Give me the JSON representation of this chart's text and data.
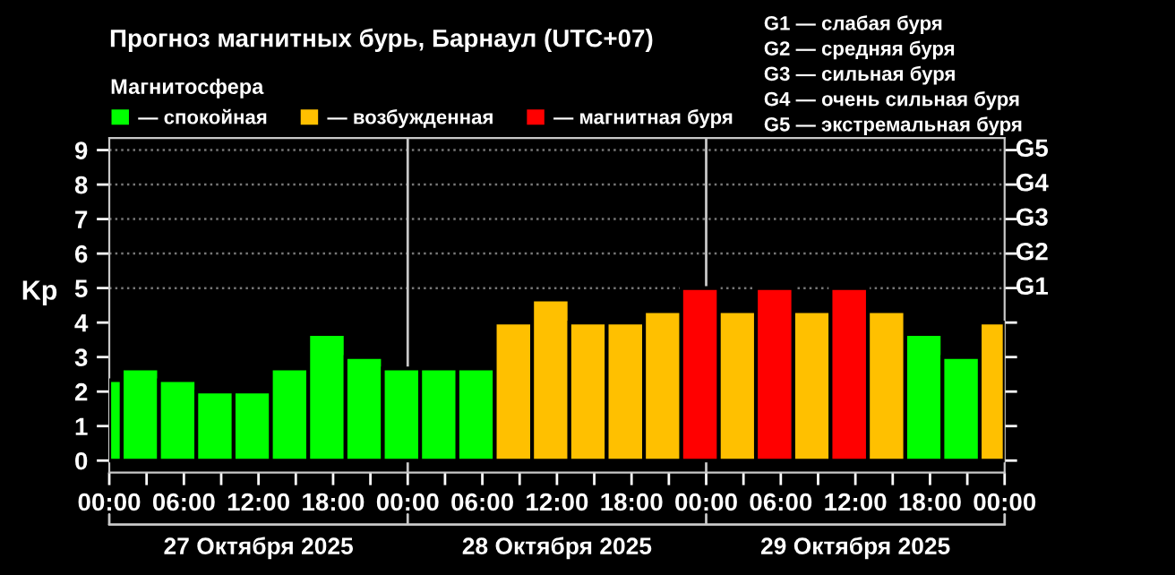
{
  "chart_data": {
    "type": "bar",
    "title": "Прогноз магнитных бурь, Барнаул (UTC+07)",
    "ylabel": "Kp",
    "legend_title": "Магнитосфера",
    "legend": "top left",
    "x": [
      "2025-10-27T00:30",
      "2025-10-27T02:30",
      "2025-10-27T05:30",
      "2025-10-27T08:30",
      "2025-10-27T11:30",
      "2025-10-27T14:30",
      "2025-10-27T17:30",
      "2025-10-27T20:30",
      "2025-10-27T23:30",
      "2025-10-28T02:30",
      "2025-10-28T05:30",
      "2025-10-28T08:30",
      "2025-10-28T11:30",
      "2025-10-28T14:30",
      "2025-10-28T17:30",
      "2025-10-28T20:30",
      "2025-10-28T23:30",
      "2025-10-29T02:30",
      "2025-10-29T05:30",
      "2025-10-29T08:30",
      "2025-10-29T11:30",
      "2025-10-29T14:30",
      "2025-10-29T17:30",
      "2025-10-29T20:30",
      "2025-10-29T23:00"
    ],
    "series": [
      {
        "name": "— спокойная",
        "color": "#00ff00",
        "values": [
          2.33,
          2.67,
          2.33,
          2.0,
          2.0,
          2.67,
          3.67,
          3.0,
          2.67,
          2.67,
          2.67,
          null,
          null,
          null,
          null,
          null,
          null,
          null,
          null,
          null,
          null,
          null,
          3.67,
          3.0,
          null
        ]
      },
      {
        "name": "— возбужденная",
        "color": "#ffc000",
        "values": [
          null,
          null,
          null,
          null,
          null,
          null,
          null,
          null,
          null,
          null,
          null,
          4.0,
          4.67,
          4.0,
          4.0,
          4.33,
          null,
          4.33,
          null,
          4.33,
          null,
          4.33,
          null,
          null,
          4.0
        ]
      },
      {
        "name": "— магнитная буря",
        "color": "#ff0000",
        "values": [
          null,
          null,
          null,
          null,
          null,
          null,
          null,
          null,
          null,
          null,
          null,
          null,
          null,
          null,
          null,
          null,
          5.0,
          null,
          5.0,
          null,
          5.0,
          null,
          null,
          null,
          null
        ]
      }
    ],
    "xlim": [
      "2025-10-27T00:00",
      "2025-10-30T00:00"
    ],
    "xticks": [
      {
        "value": "2025-10-27T00:00",
        "label": "00:00"
      },
      {
        "value": "2025-10-27T03:00",
        "label": null
      },
      {
        "value": "2025-10-27T06:00",
        "label": "06:00"
      },
      {
        "value": "2025-10-27T09:00",
        "label": null
      },
      {
        "value": "2025-10-27T12:00",
        "label": "12:00"
      },
      {
        "value": "2025-10-27T15:00",
        "label": null
      },
      {
        "value": "2025-10-27T18:00",
        "label": "18:00"
      },
      {
        "value": "2025-10-27T21:00",
        "label": null
      },
      {
        "value": "2025-10-28T00:00",
        "label": "00:00"
      },
      {
        "value": "2025-10-28T03:00",
        "label": null
      },
      {
        "value": "2025-10-28T06:00",
        "label": "06:00"
      },
      {
        "value": "2025-10-28T09:00",
        "label": null
      },
      {
        "value": "2025-10-28T12:00",
        "label": "12:00"
      },
      {
        "value": "2025-10-28T15:00",
        "label": null
      },
      {
        "value": "2025-10-28T18:00",
        "label": "18:00"
      },
      {
        "value": "2025-10-28T21:00",
        "label": null
      },
      {
        "value": "2025-10-29T00:00",
        "label": "00:00"
      },
      {
        "value": "2025-10-29T03:00",
        "label": null
      },
      {
        "value": "2025-10-29T06:00",
        "label": "06:00"
      },
      {
        "value": "2025-10-29T09:00",
        "label": null
      },
      {
        "value": "2025-10-29T12:00",
        "label": "12:00"
      },
      {
        "value": "2025-10-29T15:00",
        "label": null
      },
      {
        "value": "2025-10-29T18:00",
        "label": "18:00"
      },
      {
        "value": "2025-10-29T21:00",
        "label": null
      },
      {
        "value": "2025-10-30T00:00",
        "label": "00:00"
      }
    ],
    "ylim": [
      -0.35,
      9.35
    ],
    "yticks": [
      0,
      1,
      2,
      3,
      4,
      5,
      6,
      7,
      8,
      9
    ],
    "ref_lines": [
      {
        "axis": "x",
        "value": "2025-10-28T00:00",
        "label": null,
        "color": "#c8c8c8"
      },
      {
        "axis": "x",
        "value": "2025-10-29T00:00",
        "label": null,
        "color": "#c8c8c8"
      },
      {
        "axis": "y",
        "value": 5,
        "label": "G1",
        "color": "#777777",
        "line_style": "dotted"
      },
      {
        "axis": "y",
        "value": 6,
        "label": "G2",
        "color": "#777777",
        "line_style": "dotted"
      },
      {
        "axis": "y",
        "value": 7,
        "label": "G3",
        "color": "#777777",
        "line_style": "dotted"
      },
      {
        "axis": "y",
        "value": 8,
        "label": "G4",
        "color": "#777777",
        "line_style": "dotted"
      },
      {
        "axis": "y",
        "value": 9,
        "label": "G5",
        "color": "#777777",
        "line_style": "dotted"
      }
    ],
    "annotations": [
      "27 Октября 2025",
      "28 Октября 2025",
      "29 Октября 2025",
      "G1 — слабая буря",
      "G2 — средняя буря",
      "G3 — сильная буря",
      "G4 — очень сильная буря",
      "G5 — экстремальная буря"
    ]
  }
}
